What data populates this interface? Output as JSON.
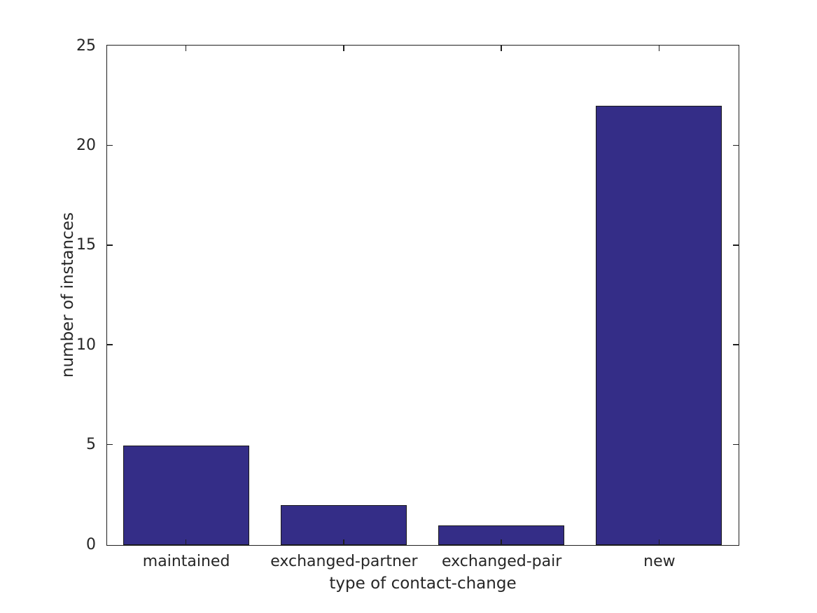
{
  "chart_data": {
    "type": "bar",
    "categories": [
      "maintained",
      "exchanged-partner",
      "exchanged-pair",
      "new"
    ],
    "values": [
      5,
      2,
      1,
      22
    ],
    "title": "",
    "xlabel": "type of contact-change",
    "ylabel": "number of instances",
    "ylim": [
      0,
      25
    ],
    "yticks": [
      0,
      5,
      10,
      15,
      20,
      25
    ],
    "grid": false,
    "legend_position": "none",
    "bar_color": "#342d87",
    "bar_edge_color": "#1a1a1a",
    "axis_color": "#1f1f1f",
    "text_color": "#262626",
    "background_color": "#ffffff",
    "bar_width_fraction": 0.8
  }
}
